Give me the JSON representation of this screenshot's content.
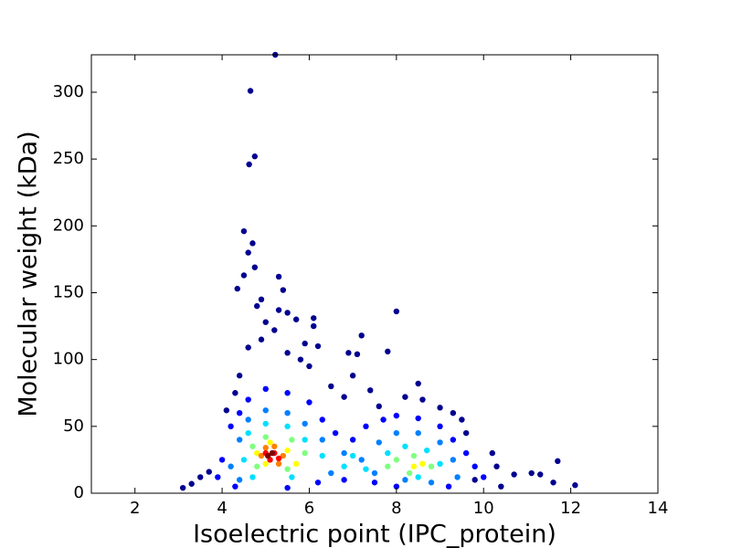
{
  "chart_data": {
    "type": "scatter",
    "x_label": "Isoelectric point (IPC_protein)",
    "y_label": "Molecular weight (kDa)",
    "xlim": [
      1,
      14
    ],
    "xticks": [
      2,
      4,
      6,
      8,
      10,
      12,
      14
    ],
    "ylim": [
      0,
      328
    ],
    "yticks": [
      0,
      50,
      100,
      150,
      200,
      250,
      300
    ],
    "series": [
      {
        "color": "#00008f",
        "x": [
          5.22,
          4.65,
          4.75,
          4.62,
          4.5,
          4.7,
          4.6,
          4.75,
          4.5,
          5.3,
          4.35,
          5.4,
          4.9,
          4.8,
          5.3,
          5.5,
          5.0,
          5.7,
          6.1,
          6.1,
          5.9,
          6.2,
          7.2,
          8.0,
          7.8,
          6.9,
          7.1,
          4.6,
          4.9,
          5.2,
          5.5,
          6.5,
          7.0,
          7.4,
          8.2,
          8.5,
          9.0,
          9.3,
          9.6,
          10.2,
          10.3,
          10.7,
          11.1,
          11.3,
          11.6,
          11.7,
          12.1,
          3.1,
          3.3,
          3.5,
          3.7,
          10.4,
          9.8,
          4.1,
          4.3,
          6.8,
          7.6,
          8.6,
          9.5,
          6.0,
          5.8,
          4.4
        ],
        "values": [
          328,
          301,
          252,
          246,
          196,
          187,
          180,
          169,
          163,
          162,
          153,
          152,
          145,
          140,
          137,
          135,
          128,
          130,
          131,
          125,
          112,
          110,
          118,
          136,
          106,
          105,
          104,
          109,
          115,
          122,
          105,
          80,
          88,
          77,
          72,
          82,
          64,
          60,
          45,
          30,
          20,
          14,
          15,
          14,
          8,
          24,
          6,
          4,
          7,
          12,
          16,
          5,
          10,
          62,
          75,
          72,
          65,
          70,
          55,
          95,
          100,
          88
        ]
      },
      {
        "color": "#0000ff",
        "x": [
          4.2,
          4.4,
          4.6,
          5.0,
          5.5,
          6.0,
          6.3,
          6.6,
          7.0,
          7.3,
          7.7,
          8.0,
          8.5,
          9.0,
          9.3,
          9.6,
          9.8,
          10.0,
          3.9,
          4.0,
          6.8,
          7.5,
          8.0,
          9.2,
          6.2,
          4.3,
          5.5
        ],
        "values": [
          50,
          60,
          70,
          78,
          75,
          68,
          55,
          45,
          40,
          50,
          55,
          58,
          56,
          50,
          40,
          30,
          20,
          12,
          12,
          25,
          10,
          8,
          5,
          5,
          8,
          5,
          4
        ]
      },
      {
        "color": "#0080ff",
        "x": [
          4.4,
          4.6,
          5.0,
          5.5,
          5.9,
          6.3,
          6.8,
          7.2,
          7.6,
          8.0,
          8.5,
          9.0,
          9.3,
          9.4,
          7.5,
          6.5,
          4.2,
          4.4,
          8.2,
          8.8
        ],
        "values": [
          40,
          55,
          62,
          60,
          52,
          40,
          30,
          25,
          38,
          45,
          45,
          38,
          25,
          12,
          15,
          15,
          20,
          10,
          10,
          8
        ]
      },
      {
        "color": "#00e0ff",
        "x": [
          4.6,
          5.0,
          5.5,
          5.9,
          6.3,
          6.8,
          7.3,
          7.8,
          8.2,
          8.7,
          9.0,
          8.5,
          4.5,
          4.7,
          5.6,
          7.0
        ],
        "values": [
          45,
          52,
          50,
          40,
          28,
          20,
          18,
          30,
          35,
          32,
          22,
          12,
          25,
          12,
          12,
          28
        ]
      },
      {
        "color": "#80ff80",
        "x": [
          4.7,
          5.0,
          5.6,
          5.9,
          5.5,
          4.8,
          8.0,
          8.4,
          8.8,
          8.3,
          7.8
        ],
        "values": [
          35,
          42,
          40,
          30,
          18,
          20,
          25,
          28,
          20,
          15,
          20
        ]
      },
      {
        "color": "#ffff00",
        "x": [
          4.8,
          5.1,
          5.5,
          5.7,
          5.0,
          8.4,
          8.6
        ],
        "values": [
          30,
          38,
          32,
          22,
          22,
          20,
          22
        ]
      },
      {
        "color": "#ff8000",
        "x": [
          4.9,
          5.2,
          5.4,
          5.3,
          5.0
        ],
        "values": [
          28,
          35,
          28,
          22,
          34
        ]
      },
      {
        "color": "#ff0000",
        "x": [
          5.0,
          5.2,
          5.3,
          5.1
        ],
        "values": [
          30,
          30,
          26,
          25
        ]
      },
      {
        "color": "#800000",
        "x": [
          5.15,
          5.05
        ],
        "values": [
          30,
          28
        ]
      }
    ]
  }
}
